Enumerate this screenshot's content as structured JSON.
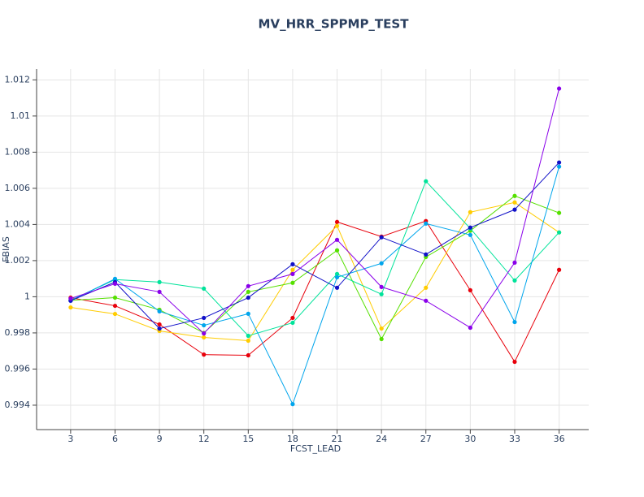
{
  "chart_data": {
    "type": "line",
    "title": "MV_HRR_SPPMP_TEST",
    "x_label": "FCST_LEAD",
    "y_label": "FBIAS",
    "x": [
      3,
      6,
      9,
      12,
      15,
      18,
      21,
      24,
      27,
      30,
      33,
      36
    ],
    "xlim": [
      0.7,
      38
    ],
    "xticks": [
      3,
      6,
      9,
      12,
      15,
      18,
      21,
      24,
      27,
      30,
      33,
      36
    ],
    "ylim": [
      0.99265,
      1.0126
    ],
    "yticks": [
      0.994,
      0.996,
      0.998,
      1,
      1.002,
      1.004,
      1.006,
      1.008,
      1.01,
      1.012
    ],
    "grid": true,
    "series": [
      {
        "color": "#e8000b",
        "values": [
          0.99995,
          0.9995,
          0.99847,
          0.9968,
          0.99676,
          0.99883,
          1.00414,
          1.00333,
          1.00419,
          1.00036,
          0.9964,
          1.00149
        ]
      },
      {
        "color": "#ffcc00",
        "values": [
          0.99941,
          0.99905,
          0.99811,
          0.99775,
          0.99757,
          1.00149,
          1.00392,
          0.99824,
          1.0005,
          1.00468,
          1.00522,
          1.00356
        ]
      },
      {
        "color": "#55e000",
        "values": [
          0.9998,
          0.99995,
          0.99928,
          0.998,
          1.00027,
          1.00077,
          1.00257,
          0.99766,
          1.0022,
          1.00365,
          1.00558,
          1.00464
        ]
      },
      {
        "color": "#00e39a",
        "values": [
          0.9998,
          1.00095,
          1.00081,
          1.00045,
          0.99784,
          0.99856,
          1.00126,
          1.00014,
          1.00639,
          1.00378,
          1.0009,
          1.00356
        ]
      },
      {
        "color": "#00a5ec",
        "values": [
          0.99978,
          1.00099,
          0.99919,
          0.99842,
          0.99906,
          0.99406,
          1.00108,
          1.00185,
          1.00405,
          1.00342,
          0.9986,
          1.0072
        ]
      },
      {
        "color": "#1010c8",
        "values": [
          0.99978,
          1.00081,
          0.99824,
          0.99883,
          0.99995,
          1.0018,
          1.0005,
          1.00329,
          1.00234,
          1.00383,
          1.00482,
          1.00743
        ]
      },
      {
        "color": "#8a00ea",
        "values": [
          0.9999,
          1.00072,
          1.00027,
          0.99797,
          1.00059,
          1.00126,
          1.00315,
          1.00054,
          0.99978,
          0.99829,
          1.00189,
          1.01152
        ]
      }
    ]
  }
}
